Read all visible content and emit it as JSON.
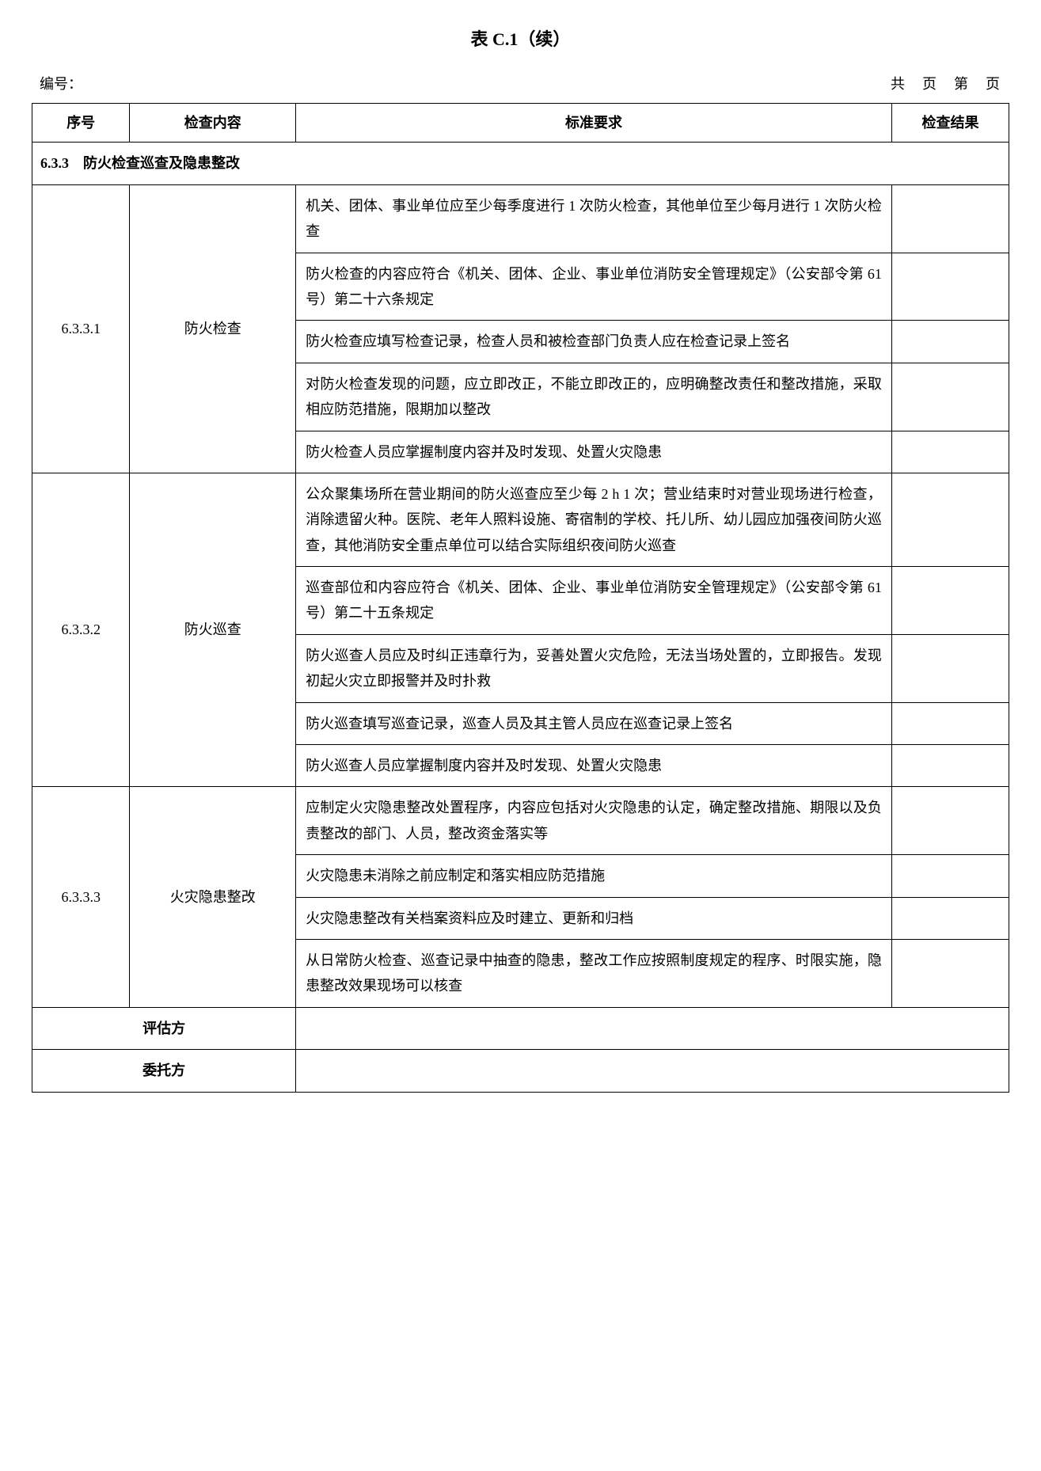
{
  "title": "表 C.1（续）",
  "meta": {
    "left": "编号：",
    "right": "共　页　第　页"
  },
  "headers": {
    "seq": "序号",
    "item": "检查内容",
    "req": "标准要求",
    "res": "检查结果"
  },
  "section": "6.3.3　防火检查巡查及隐患整改",
  "groups": [
    {
      "seq": "6.3.3.1",
      "item": "防火检查",
      "rows": [
        "机关、团体、事业单位应至少每季度进行 1 次防火检查，其他单位至少每月进行 1 次防火检查",
        "防火检查的内容应符合《机关、团体、企业、事业单位消防安全管理规定》（公安部令第 61 号）第二十六条规定",
        "防火检查应填写检查记录，检查人员和被检查部门负责人应在检查记录上签名",
        "对防火检查发现的问题，应立即改正，不能立即改正的，应明确整改责任和整改措施，采取相应防范措施，限期加以整改",
        "防火检查人员应掌握制度内容并及时发现、处置火灾隐患"
      ]
    },
    {
      "seq": "6.3.3.2",
      "item": "防火巡查",
      "rows": [
        "公众聚集场所在营业期间的防火巡查应至少每 2 h 1 次；营业结束时对营业现场进行检查，消除遗留火种。医院、老年人照料设施、寄宿制的学校、托儿所、幼儿园应加强夜间防火巡查，其他消防安全重点单位可以结合实际组织夜间防火巡查",
        "巡查部位和内容应符合《机关、团体、企业、事业单位消防安全管理规定》（公安部令第 61 号）第二十五条规定",
        "防火巡查人员应及时纠正违章行为，妥善处置火灾危险，无法当场处置的，立即报告。发现初起火灾立即报警并及时扑救",
        "防火巡查填写巡查记录，巡查人员及其主管人员应在巡查记录上签名",
        "防火巡查人员应掌握制度内容并及时发现、处置火灾隐患"
      ]
    },
    {
      "seq": "6.3.3.3",
      "item": "火灾隐患整改",
      "rows": [
        "应制定火灾隐患整改处置程序，内容应包括对火灾隐患的认定，确定整改措施、期限以及负责整改的部门、人员，整改资金落实等",
        "火灾隐患未消除之前应制定和落实相应防范措施",
        "火灾隐患整改有关档案资料应及时建立、更新和归档",
        "从日常防火检查、巡查记录中抽查的隐患，整改工作应按照制度规定的程序、时限实施，隐患整改效果现场可以核查"
      ]
    }
  ],
  "footer": {
    "evaluator": "评估方",
    "client": "委托方"
  }
}
